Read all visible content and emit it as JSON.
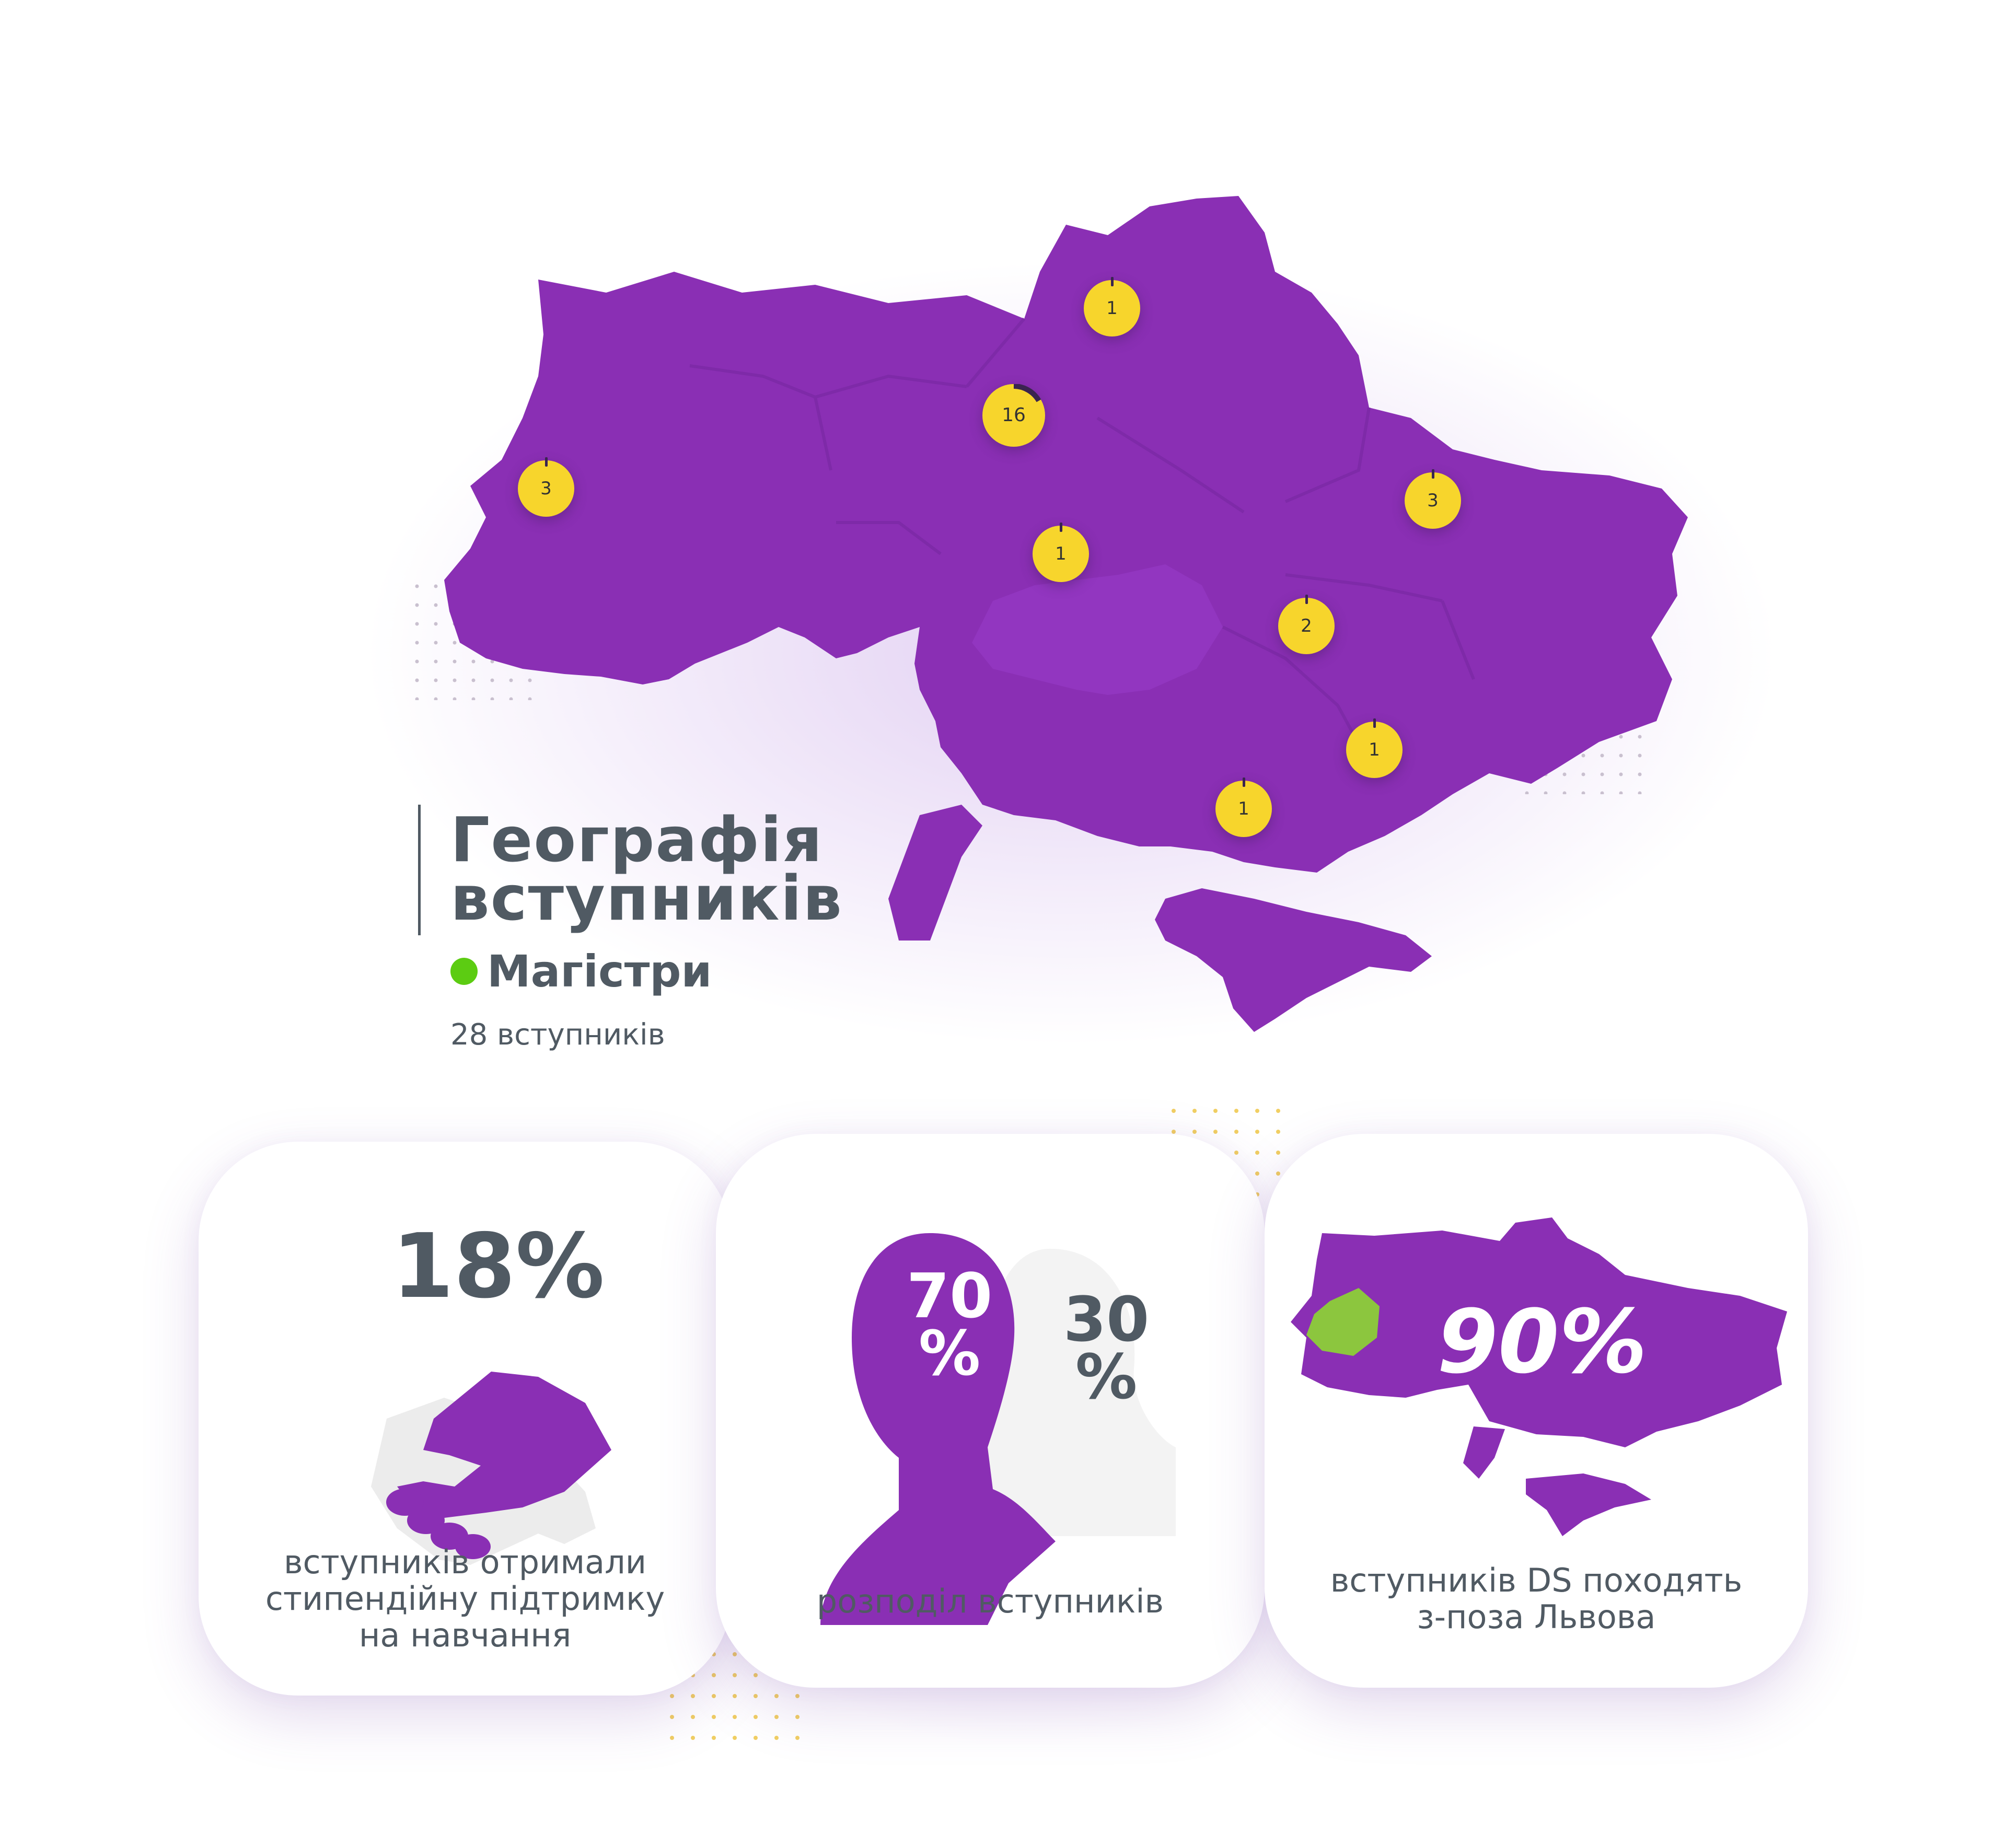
{
  "title": {
    "line1": "Географія",
    "line2": "вступників"
  },
  "legend": {
    "label": "Магістри",
    "dot_color": "#5ccc12"
  },
  "total_label": "28 вступників",
  "map": {
    "fill_color": "#8a2fb4",
    "marker_color": "#f7d52c",
    "markers": [
      {
        "region": "Lviv",
        "count": "3"
      },
      {
        "region": "Kyiv",
        "count": "16"
      },
      {
        "region": "Chernihiv",
        "count": "1"
      },
      {
        "region": "Vinnytsia",
        "count": "1"
      },
      {
        "region": "Kharkiv",
        "count": "3"
      },
      {
        "region": "Dnipro",
        "count": "2"
      },
      {
        "region": "Zaporizhzhia",
        "count": "1"
      },
      {
        "region": "Kherson",
        "count": "1"
      }
    ]
  },
  "cards": {
    "scholarship": {
      "value": "18%",
      "text": "вступників отримали\nстипендійну підтримку\nна навчання"
    },
    "gender": {
      "male_value": "70\n%",
      "female_value": "30\n%",
      "male_percent": 70,
      "female_percent": 30,
      "text": "розподіл вступників"
    },
    "outside_lviv": {
      "value": "90%",
      "text": "вступників DS походять\nз-поза Львова",
      "highlight_color": "#8cc63e"
    }
  }
}
